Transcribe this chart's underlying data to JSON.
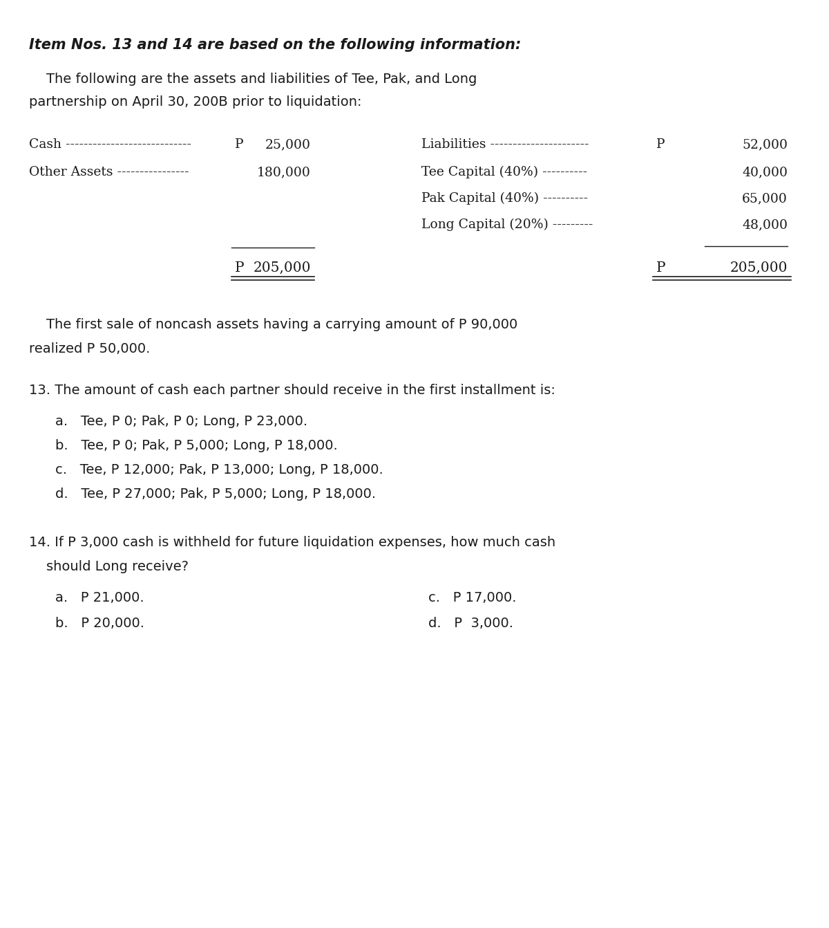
{
  "bg_color": "#ffffff",
  "font_color": "#1a1a1a",
  "title_line": "Item Nos. 13 and 14 are based on the following information:",
  "intro_line1": "    The following are the assets and liabilities of Tee, Pak, and Long",
  "intro_line2": "partnership on April 30, 200B prior to liquidation:",
  "cash_label": "Cash ----------------------------",
  "cash_prefix": "P",
  "cash_value": "25,000",
  "other_label": "Other Assets ----------------",
  "other_value": "180,000",
  "liab_label": "Liabilities ----------------------",
  "liab_prefix": "P",
  "liab_value": "52,000",
  "tee_label": "Tee Capital (40%) ----------",
  "tee_value": "40,000",
  "pak_label": "Pak Capital (40%) ----------",
  "pak_value": "65,000",
  "long_label": "Long Capital (20%) ---------",
  "long_value": "48,000",
  "left_total": "P 205,000",
  "right_total": "P 205,000",
  "para1_line1": "    The first sale of noncash assets having a carrying amount of P 90,000",
  "para1_line2": "realized P 50,000.",
  "q13_stem": "13. The amount of cash each partner should receive in the first installment is:",
  "q13_a": "a.   Tee, P 0; Pak, P 0; Long, P 23,000.",
  "q13_b": "b.   Tee, P 0; Pak, P 5,000; Long, P 18,000.",
  "q13_c": "c.   Tee, P 12,000; Pak, P 13,000; Long, P 18,000.",
  "q13_d": "d.   Tee, P 27,000; Pak, P 5,000; Long, P 18,000.",
  "q14_line1": "14. If P 3,000 cash is withheld for future liquidation expenses, how much cash",
  "q14_line2": "    should Long receive?",
  "q14_a": "a.   P 21,000.",
  "q14_b": "b.   P 20,000.",
  "q14_c": "c.   P 17,000.",
  "q14_d": "d.   P  3,000.",
  "title_fs": 15,
  "body_fs": 14,
  "table_fs": 13.5
}
